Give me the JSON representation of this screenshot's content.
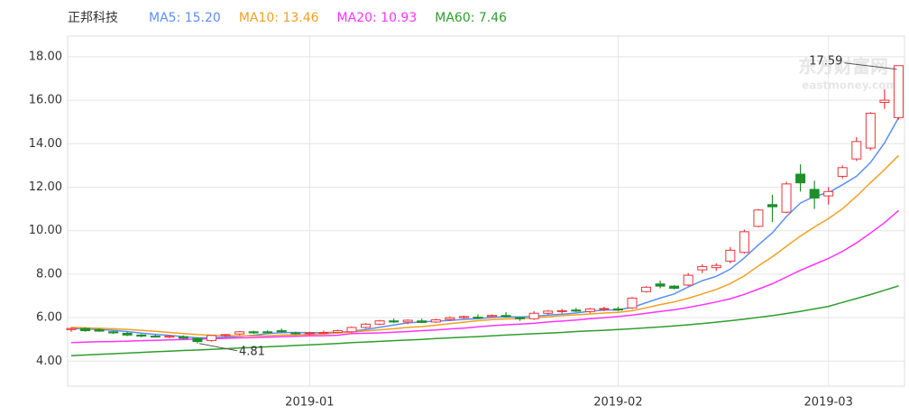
{
  "chart_data": {
    "type": "candlestick",
    "title": "正邦科技",
    "watermark": {
      "cn": "东方财富网",
      "en": "eastmoney.com"
    },
    "categories": [
      null,
      null,
      null,
      null,
      null,
      null,
      null,
      null,
      null,
      null,
      null,
      null,
      null,
      null,
      null,
      null,
      null,
      "2019-01",
      null,
      null,
      null,
      null,
      null,
      null,
      null,
      null,
      null,
      null,
      null,
      null,
      null,
      null,
      null,
      null,
      null,
      null,
      null,
      null,
      null,
      "2019-02",
      null,
      null,
      null,
      null,
      null,
      null,
      null,
      null,
      null,
      null,
      null,
      null,
      null,
      null,
      "2019-03",
      null,
      null,
      null,
      null,
      null
    ],
    "open": [
      5.45,
      5.5,
      5.45,
      5.35,
      5.28,
      5.2,
      5.15,
      5.1,
      5.12,
      5.05,
      4.95,
      5.18,
      5.25,
      5.35,
      5.35,
      5.4,
      5.3,
      5.28,
      5.3,
      5.32,
      5.35,
      5.55,
      5.7,
      5.85,
      5.8,
      5.85,
      5.8,
      5.92,
      6.0,
      6.02,
      6.05,
      6.1,
      6.0,
      5.95,
      6.2,
      6.3,
      6.35,
      6.28,
      6.38,
      6.4,
      6.45,
      7.2,
      7.55,
      7.45,
      7.5,
      8.2,
      8.3,
      8.6,
      9.0,
      10.2,
      11.2,
      10.85,
      12.6,
      11.9,
      11.6,
      12.5,
      13.3,
      13.8,
      15.9,
      15.2
    ],
    "high": [
      5.55,
      5.55,
      5.5,
      5.4,
      5.35,
      5.25,
      5.22,
      5.2,
      5.18,
      5.1,
      5.2,
      5.25,
      5.38,
      5.4,
      5.42,
      5.5,
      5.35,
      5.35,
      5.4,
      5.45,
      5.6,
      5.75,
      5.9,
      5.95,
      5.92,
      5.95,
      5.95,
      6.05,
      6.1,
      6.15,
      6.15,
      6.25,
      6.05,
      6.3,
      6.35,
      6.4,
      6.45,
      6.45,
      6.5,
      6.5,
      6.95,
      7.45,
      7.7,
      7.5,
      8.05,
      8.45,
      8.5,
      9.25,
      10.05,
      11.0,
      11.65,
      12.25,
      13.05,
      12.3,
      12.0,
      13.0,
      14.3,
      15.45,
      16.5,
      17.59
    ],
    "low": [
      5.35,
      5.35,
      5.35,
      5.25,
      5.15,
      5.1,
      5.08,
      5.05,
      5.0,
      4.81,
      4.9,
      5.1,
      5.2,
      5.25,
      5.28,
      5.3,
      5.22,
      5.2,
      5.25,
      5.28,
      5.3,
      5.5,
      5.65,
      5.75,
      5.7,
      5.75,
      5.75,
      5.85,
      5.95,
      5.95,
      6.0,
      6.0,
      5.85,
      5.9,
      6.15,
      6.2,
      6.25,
      6.2,
      6.3,
      6.3,
      6.4,
      7.15,
      7.35,
      7.3,
      7.45,
      8.05,
      8.15,
      8.5,
      8.95,
      10.15,
      10.4,
      10.8,
      11.8,
      11.0,
      11.2,
      12.4,
      13.2,
      13.7,
      15.6,
      15.1
    ],
    "close": [
      5.5,
      5.4,
      5.38,
      5.3,
      5.2,
      5.15,
      5.12,
      5.15,
      5.05,
      4.9,
      5.18,
      5.22,
      5.35,
      5.3,
      5.32,
      5.35,
      5.28,
      5.3,
      5.32,
      5.4,
      5.55,
      5.7,
      5.85,
      5.8,
      5.88,
      5.78,
      5.9,
      6.0,
      6.05,
      6.0,
      6.1,
      6.05,
      5.95,
      6.2,
      6.3,
      6.32,
      6.3,
      6.4,
      6.42,
      6.35,
      6.9,
      7.4,
      7.45,
      7.35,
      7.95,
      8.35,
      8.4,
      9.1,
      9.95,
      10.95,
      11.1,
      12.15,
      12.2,
      11.5,
      11.8,
      12.9,
      14.1,
      15.4,
      16.0,
      17.59
    ],
    "up_color": "#e8363a",
    "down_color": "#1f8f2a",
    "series": [
      {
        "name": "MA5: 15.20",
        "color": "#5b8ff9",
        "values": [
          5.5,
          5.48,
          5.45,
          5.42,
          5.36,
          5.29,
          5.23,
          5.18,
          5.13,
          5.07,
          5.08,
          5.1,
          5.14,
          5.19,
          5.27,
          5.31,
          5.32,
          5.31,
          5.31,
          5.33,
          5.37,
          5.45,
          5.56,
          5.66,
          5.76,
          5.8,
          5.84,
          5.87,
          5.92,
          5.95,
          6.01,
          6.04,
          6.03,
          6.06,
          6.12,
          6.16,
          6.21,
          6.3,
          6.35,
          6.36,
          6.47,
          6.69,
          6.9,
          7.09,
          7.41,
          7.7,
          7.9,
          8.23,
          8.75,
          9.35,
          9.9,
          10.65,
          11.27,
          11.58,
          11.75,
          12.11,
          12.5,
          13.14,
          14.04,
          15.2
        ]
      },
      {
        "name": "MA10: 13.46",
        "color": "#f0a020",
        "values": [
          5.55,
          5.53,
          5.51,
          5.49,
          5.46,
          5.42,
          5.37,
          5.32,
          5.27,
          5.22,
          5.19,
          5.17,
          5.16,
          5.16,
          5.17,
          5.2,
          5.21,
          5.23,
          5.25,
          5.3,
          5.34,
          5.39,
          5.44,
          5.49,
          5.55,
          5.59,
          5.65,
          5.72,
          5.79,
          5.86,
          5.91,
          5.94,
          5.95,
          5.99,
          6.04,
          6.09,
          6.13,
          6.17,
          6.21,
          6.24,
          6.32,
          6.45,
          6.6,
          6.72,
          6.89,
          7.09,
          7.3,
          7.57,
          7.92,
          8.38,
          8.8,
          9.28,
          9.75,
          10.17,
          10.55,
          11.01,
          11.58,
          12.21,
          12.81,
          13.46
        ]
      },
      {
        "name": "MA20: 10.93",
        "color": "#ff33ff",
        "values": [
          4.85,
          4.87,
          4.89,
          4.9,
          4.92,
          4.94,
          4.96,
          4.98,
          4.99,
          5.01,
          5.03,
          5.05,
          5.07,
          5.08,
          5.1,
          5.12,
          5.14,
          5.16,
          5.17,
          5.19,
          5.27,
          5.28,
          5.3,
          5.33,
          5.36,
          5.4,
          5.43,
          5.48,
          5.52,
          5.58,
          5.63,
          5.67,
          5.7,
          5.74,
          5.8,
          5.84,
          5.89,
          5.95,
          6.0,
          6.05,
          6.12,
          6.2,
          6.28,
          6.36,
          6.47,
          6.59,
          6.72,
          6.87,
          7.07,
          7.31,
          7.56,
          7.87,
          8.18,
          8.45,
          8.72,
          9.05,
          9.44,
          9.89,
          10.37,
          10.93
        ]
      },
      {
        "name": "MA60: 7.46",
        "color": "#2e9e2e",
        "values": [
          4.25,
          4.28,
          4.31,
          4.34,
          4.37,
          4.4,
          4.43,
          4.46,
          4.49,
          4.51,
          4.54,
          4.57,
          4.6,
          4.63,
          4.66,
          4.69,
          4.72,
          4.75,
          4.78,
          4.81,
          4.85,
          4.88,
          4.91,
          4.94,
          4.97,
          5.0,
          5.04,
          5.07,
          5.1,
          5.13,
          5.16,
          5.2,
          5.23,
          5.26,
          5.29,
          5.32,
          5.36,
          5.39,
          5.42,
          5.45,
          5.49,
          5.53,
          5.57,
          5.62,
          5.67,
          5.73,
          5.79,
          5.86,
          5.93,
          6.01,
          6.09,
          6.19,
          6.29,
          6.4,
          6.52,
          6.7,
          6.88,
          7.06,
          7.26,
          7.46
        ]
      }
    ],
    "annotations": [
      {
        "value": 17.59,
        "label": "17.59"
      },
      {
        "value": 4.81,
        "label": "4.81"
      }
    ],
    "ylim": [
      2.85,
      18.95
    ],
    "yticks": [
      {
        "value": 4,
        "label": "4.00"
      },
      {
        "value": 6,
        "label": "6.00"
      },
      {
        "value": 8,
        "label": "8.00"
      },
      {
        "value": 10,
        "label": "10.00"
      },
      {
        "value": 12,
        "label": "12.00"
      },
      {
        "value": 14,
        "label": "14.00"
      },
      {
        "value": 16,
        "label": "16.00"
      },
      {
        "value": 18,
        "label": "18.00"
      }
    ],
    "grid": true
  }
}
